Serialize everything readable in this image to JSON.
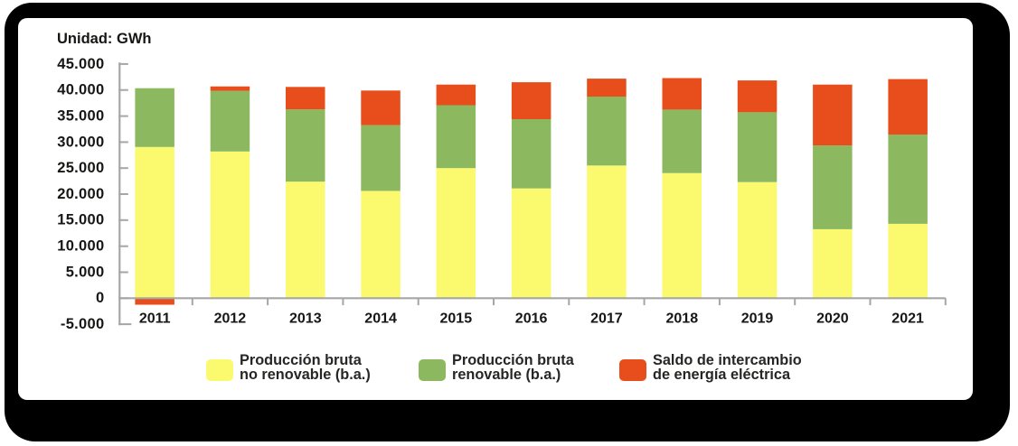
{
  "title": "Unidad: GWh",
  "chart_data": {
    "type": "bar",
    "stacked": true,
    "title": "Unidad: GWh",
    "xlabel": "",
    "ylabel": "GWh",
    "categories": [
      "2011",
      "2012",
      "2013",
      "2014",
      "2015",
      "2016",
      "2017",
      "2018",
      "2019",
      "2020",
      "2021"
    ],
    "series": [
      {
        "name": "Producción bruta no renovable (b.a.)",
        "legend_lines": [
          "Producción bruta",
          "no renovable (b.a.)"
        ],
        "color": "#fbfa6e",
        "values": [
          29050,
          28200,
          22400,
          20600,
          25000,
          21100,
          25500,
          24050,
          22300,
          13250,
          14300
        ]
      },
      {
        "name": "Producción bruta renovable (b.a.)",
        "legend_lines": [
          "Producción bruta",
          "renovable (b.a.)"
        ],
        "color": "#8cb85f",
        "values": [
          11300,
          11650,
          13900,
          12650,
          12100,
          13300,
          13250,
          12200,
          13450,
          16100,
          17150
        ]
      },
      {
        "name": "Saldo de intercambio de energía eléctrica",
        "legend_lines": [
          "Saldo de intercambio",
          "de energía eléctrica"
        ],
        "color": "#e84e1b",
        "values": [
          -1250,
          850,
          4300,
          6650,
          3950,
          7100,
          3450,
          6050,
          6100,
          11700,
          10650
        ]
      }
    ],
    "ylim": [
      -5000,
      45000
    ],
    "ytick_step": 5000,
    "ytick_labels": [
      "45.000",
      "40.000",
      "35.000",
      "30.000",
      "25.000",
      "20.000",
      "15.000",
      "10.000",
      "5.000",
      "0",
      "-5.000"
    ],
    "grid": false,
    "legend_position": "bottom",
    "axis_color": "#a6a6a6",
    "text_color": "#161615"
  }
}
